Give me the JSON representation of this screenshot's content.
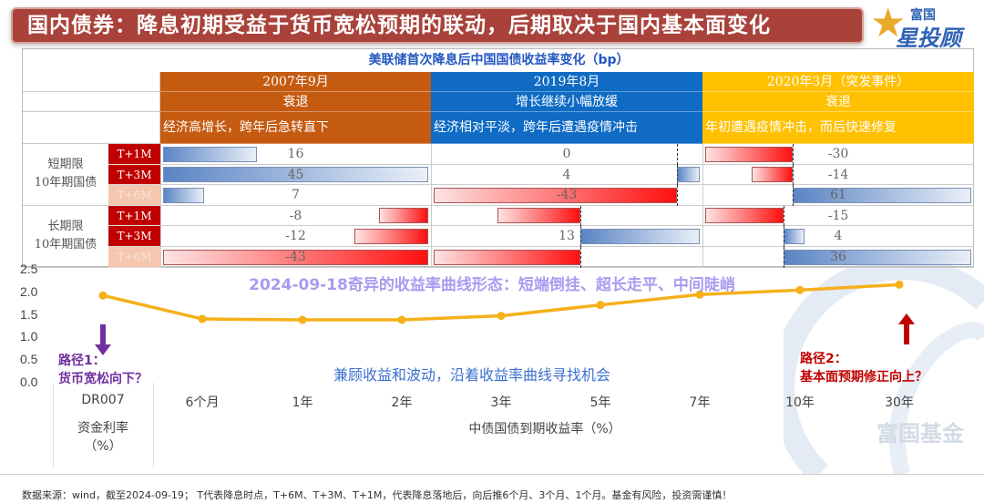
{
  "banner": {
    "title": "国内债券：降息初期受益于货币宽松预期的联动，后期取决于国内基本面变化"
  },
  "logo": {
    "brand_top": "富国",
    "brand_main": "星投顾"
  },
  "table": {
    "title": "美联储首次降息后中国国债收益率变化（bp）",
    "columns": [
      {
        "date": "2007年9月",
        "state": "衰退",
        "desc": "经济高增长，跨年后急转直下",
        "color": "#c55a11"
      },
      {
        "date": "2019年8月",
        "state": "增长继续小幅放缓",
        "desc": "经济相对平淡，跨年后遭遇疫情冲击",
        "color": "#0f6bc4"
      },
      {
        "date": "2020年3月（突发事件）",
        "state": "衰退",
        "desc": "年初遭遇疫情冲击，而后快速修复",
        "color": "#ffc000"
      }
    ],
    "groups": [
      {
        "label1": "短期限",
        "label2": "10年期国债",
        "rows": [
          {
            "t": "T+1M",
            "values": [
              16,
              0,
              -30
            ],
            "labels": [
              "16",
              "0",
              "-30"
            ]
          },
          {
            "t": "T+3M",
            "values": [
              45,
              4,
              -14
            ],
            "labels": [
              "45",
              "4",
              "-14"
            ]
          },
          {
            "t": "T+6M",
            "values": [
              7,
              -43,
              61
            ],
            "labels": [
              "7",
              "-43",
              "61"
            ]
          }
        ]
      },
      {
        "label1": "长期限",
        "label2": "10年期国债",
        "rows": [
          {
            "t": "T+1M",
            "values": [
              -8,
              -9,
              -15
            ],
            "labels": [
              "-8",
              "",
              "-15"
            ]
          },
          {
            "t": "T+3M",
            "values": [
              -12,
              13,
              4
            ],
            "labels": [
              "-12",
              "13",
              "4"
            ]
          },
          {
            "t": "T+6M",
            "values": [
              -43,
              -16,
              36
            ],
            "labels": [
              "-43",
              "",
              "36"
            ]
          }
        ]
      }
    ]
  },
  "chart_data": {
    "type": "line",
    "title": "2024-09-18奇异的收益率曲线形态：短端倒挂、超长走平、中间陡峭",
    "categories": [
      "DR007",
      "6个月",
      "1年",
      "2年",
      "3年",
      "5年",
      "7年",
      "10年",
      "30年"
    ],
    "values": [
      1.91,
      1.39,
      1.37,
      1.37,
      1.46,
      1.7,
      1.93,
      2.03,
      2.15
    ],
    "yticks": [
      "2.5",
      "2.0",
      "1.5",
      "1.0",
      "0.5",
      "0.0"
    ],
    "ylim": [
      0,
      2.5
    ],
    "line_color": "#f5b01a",
    "xgroup_left": {
      "l1": "资金利率",
      "l2": "（%）"
    },
    "xgroup_right": "中债国债到期收益率（%）",
    "annotation_center": "兼顾收益和波动，沿着收益率曲线寻找机会",
    "path1": {
      "l1": "路径1：",
      "l2": "货币宽松向下？",
      "color": "#7030a0"
    },
    "path2": {
      "l1": "路径2：",
      "l2": "基本面预期修正向上？",
      "color": "#c00000"
    }
  },
  "watermark": "富国基金",
  "footer": "数据来源：wind，截至2024-09-19； T代表降息时点，T+6M、T+3M、T+1M，代表降息落地后，向后推6个月、3个月、1个月。基金有风险，投资需谨慎！"
}
